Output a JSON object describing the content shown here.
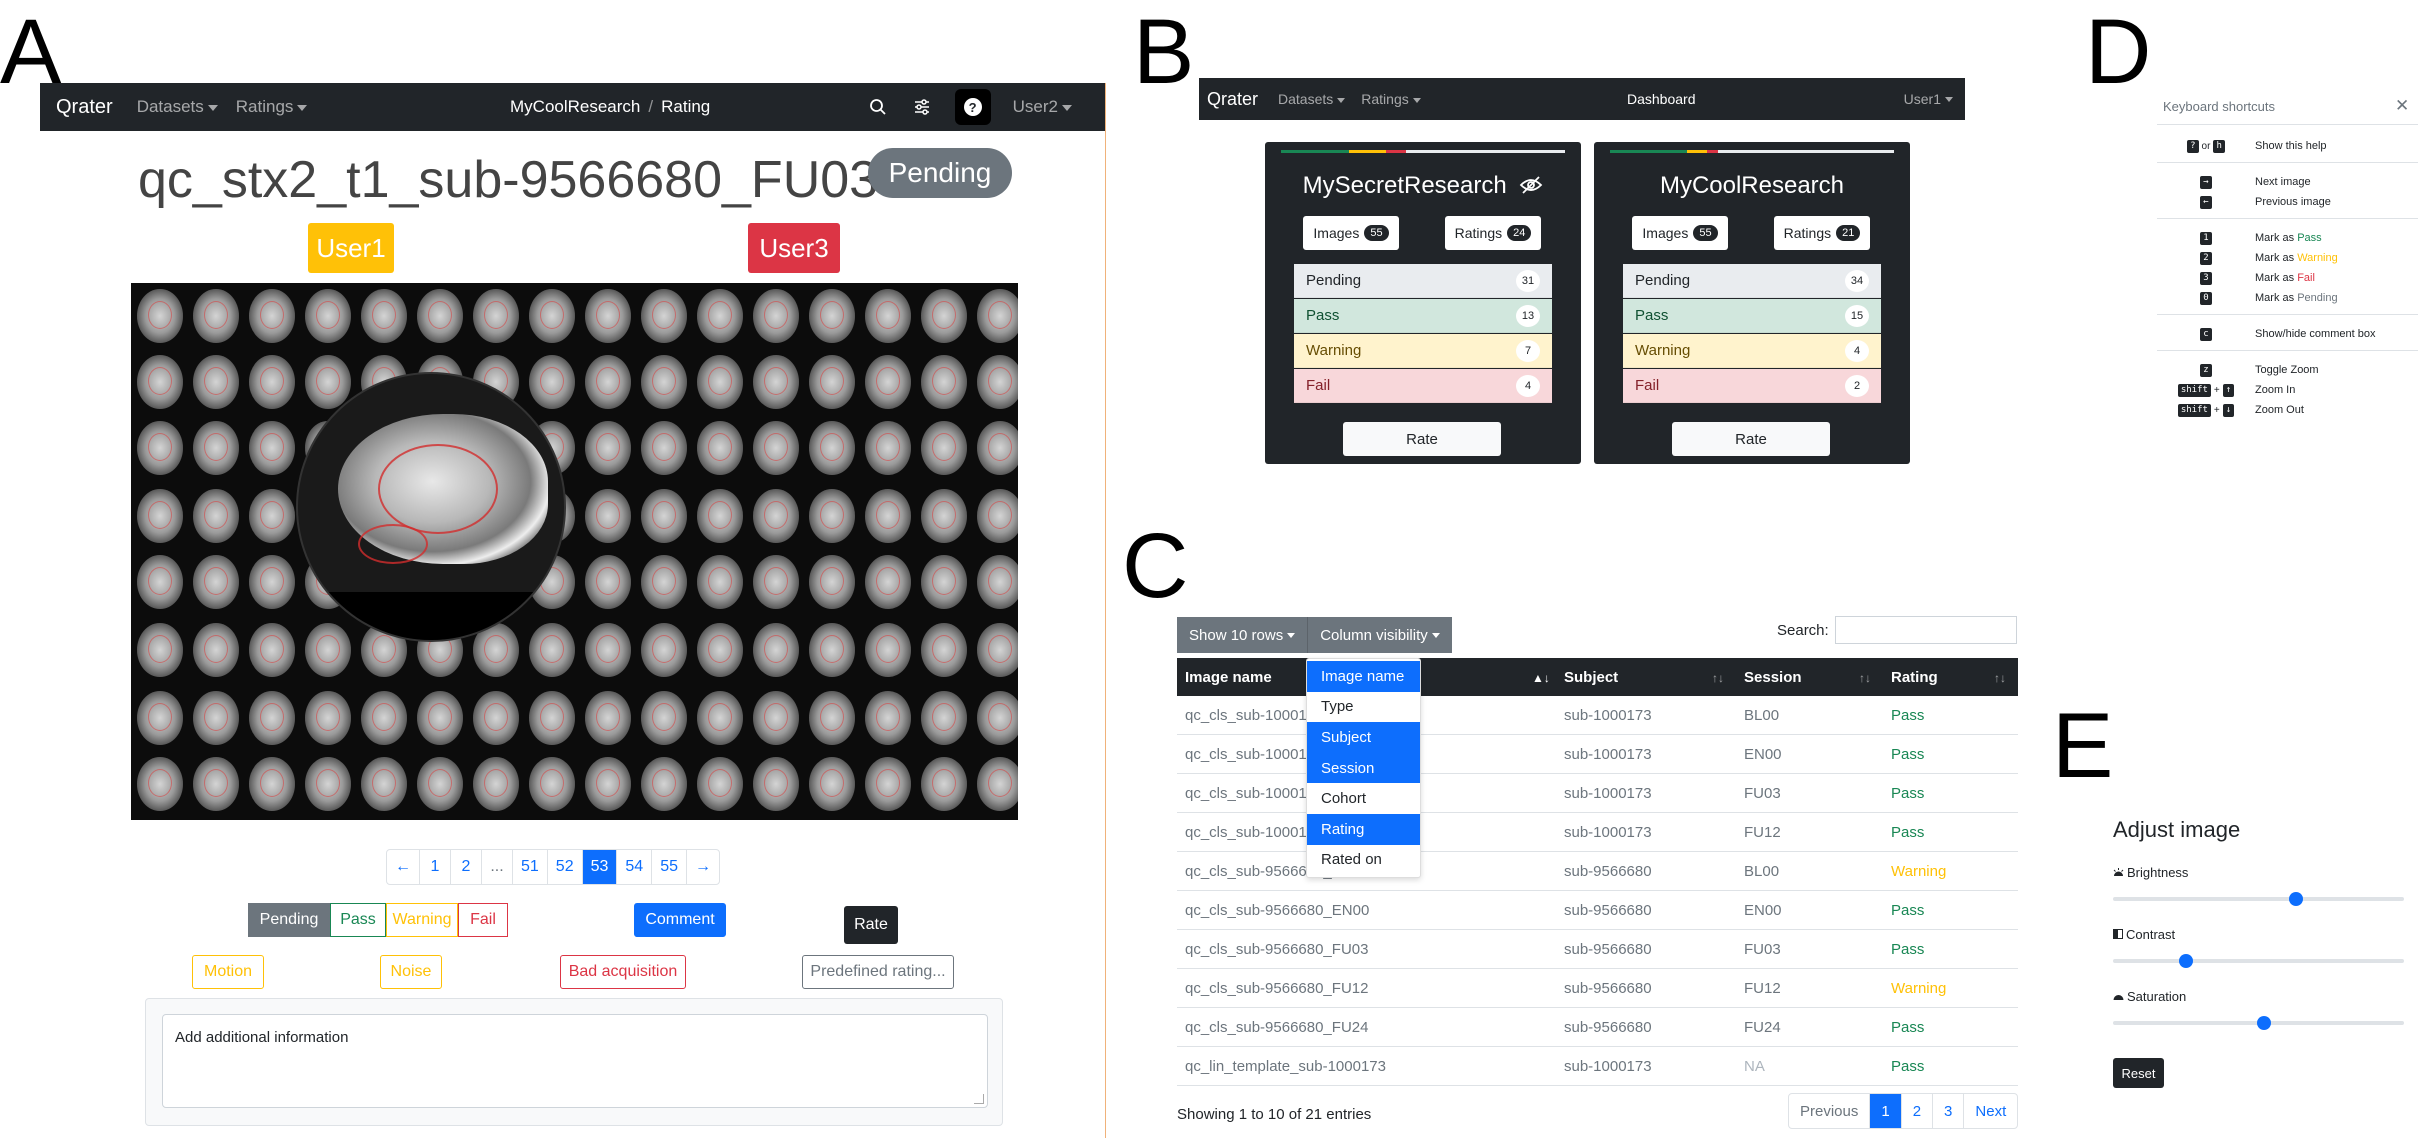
{
  "panel_letters": [
    "A",
    "B",
    "C",
    "D",
    "E"
  ],
  "panelA": {
    "navbar": {
      "brand": "Qrater",
      "menu": [
        "Datasets",
        "Ratings"
      ],
      "breadcrumb": [
        "MyCoolResearch",
        "Rating"
      ],
      "user": "User2",
      "icons": [
        "search-icon",
        "sliders-icon",
        "help-icon"
      ]
    },
    "image_title": "qc_stx2_t1_sub-9566680_FU03",
    "status_badge": "Pending",
    "raters": [
      {
        "name": "User1",
        "color": "#ffc107"
      },
      {
        "name": "User3",
        "color": "#dc3545"
      }
    ],
    "pagination": {
      "prev": "←",
      "pages": [
        "1",
        "2",
        "...",
        "51",
        "52",
        "53",
        "54",
        "55"
      ],
      "active": "53",
      "next": "→"
    },
    "rating_buttons": [
      "Pending",
      "Pass",
      "Warning",
      "Fail"
    ],
    "comment_button": "Comment",
    "rate_button": "Rate",
    "tags": [
      "Motion",
      "Noise",
      "Bad acquisition"
    ],
    "predefined_placeholder": "Predefined rating...",
    "comment_placeholder": "Add additional information"
  },
  "panelB": {
    "navbar": {
      "brand": "Qrater",
      "menu": [
        "Datasets",
        "Ratings"
      ],
      "center": "Dashboard",
      "user": "User1"
    },
    "cards": [
      {
        "name": "MySecretResearch",
        "hidden": true,
        "images_label": "Images",
        "images": "55",
        "ratings_label": "Ratings",
        "ratings": "24",
        "progress": {
          "pass": 0.24,
          "warning": 0.13,
          "fail": 0.07,
          "pending": 0.56
        },
        "stats": [
          {
            "label": "Pending",
            "count": "31"
          },
          {
            "label": "Pass",
            "count": "13"
          },
          {
            "label": "Warning",
            "count": "7"
          },
          {
            "label": "Fail",
            "count": "4"
          }
        ],
        "rate": "Rate"
      },
      {
        "name": "MyCoolResearch",
        "hidden": false,
        "images_label": "Images",
        "images": "55",
        "ratings_label": "Ratings",
        "ratings": "21",
        "progress": {
          "pass": 0.27,
          "warning": 0.07,
          "fail": 0.04,
          "pending": 0.62
        },
        "stats": [
          {
            "label": "Pending",
            "count": "34"
          },
          {
            "label": "Pass",
            "count": "15"
          },
          {
            "label": "Warning",
            "count": "4"
          },
          {
            "label": "Fail",
            "count": "2"
          }
        ],
        "rate": "Rate"
      }
    ]
  },
  "panelC": {
    "show_rows": "Show 10 rows",
    "column_visibility": "Column visibility",
    "search_label": "Search:",
    "columns": [
      "Image name",
      "Subject",
      "Session",
      "Rating"
    ],
    "dropdown": [
      {
        "label": "Image name",
        "on": true
      },
      {
        "label": "Type",
        "on": false
      },
      {
        "label": "Subject",
        "on": true
      },
      {
        "label": "Session",
        "on": true
      },
      {
        "label": "Cohort",
        "on": false
      },
      {
        "label": "Rating",
        "on": true
      },
      {
        "label": "Rated on",
        "on": false
      }
    ],
    "rows": [
      {
        "image": "qc_cls_sub-1000173_BL00",
        "subject": "sub-1000173",
        "session": "BL00",
        "rating": "Pass"
      },
      {
        "image": "qc_cls_sub-1000173_EN00",
        "subject": "sub-1000173",
        "session": "EN00",
        "rating": "Pass"
      },
      {
        "image": "qc_cls_sub-1000173_FU03",
        "subject": "sub-1000173",
        "session": "FU03",
        "rating": "Pass"
      },
      {
        "image": "qc_cls_sub-1000173_FU12",
        "subject": "sub-1000173",
        "session": "FU12",
        "rating": "Pass"
      },
      {
        "image": "qc_cls_sub-9566680_BL00",
        "subject": "sub-9566680",
        "session": "BL00",
        "rating": "Warning"
      },
      {
        "image": "qc_cls_sub-9566680_EN00",
        "subject": "sub-9566680",
        "session": "EN00",
        "rating": "Pass"
      },
      {
        "image": "qc_cls_sub-9566680_FU03",
        "subject": "sub-9566680",
        "session": "FU03",
        "rating": "Pass"
      },
      {
        "image": "qc_cls_sub-9566680_FU12",
        "subject": "sub-9566680",
        "session": "FU12",
        "rating": "Warning"
      },
      {
        "image": "qc_cls_sub-9566680_FU24",
        "subject": "sub-9566680",
        "session": "FU24",
        "rating": "Pass"
      },
      {
        "image": "qc_lin_template_sub-1000173",
        "subject": "sub-1000173",
        "session": "NA",
        "rating": "Pass"
      }
    ],
    "info": "Showing 1 to 10 of 21 entries",
    "pager": {
      "prev": "Previous",
      "pages": [
        "1",
        "2",
        "3"
      ],
      "next": "Next"
    }
  },
  "panelD": {
    "title": "Keyboard shortcuts",
    "shortcuts": [
      {
        "keys": [
          "?",
          "or",
          "h"
        ],
        "desc": "Show this help"
      },
      {
        "keys": [
          "→"
        ],
        "desc": "Next image"
      },
      {
        "keys": [
          "←"
        ],
        "desc": "Previous image"
      },
      {
        "keys": [
          "1"
        ],
        "desc_prefix": "Mark as ",
        "desc_word": "Pass",
        "color": "#198754"
      },
      {
        "keys": [
          "2"
        ],
        "desc_prefix": "Mark as ",
        "desc_word": "Warning",
        "color": "#ffc107"
      },
      {
        "keys": [
          "3"
        ],
        "desc_prefix": "Mark as ",
        "desc_word": "Fail",
        "color": "#dc3545"
      },
      {
        "keys": [
          "0"
        ],
        "desc_prefix": "Mark as ",
        "desc_word": "Pending",
        "color": "#6c757d"
      },
      {
        "keys": [
          "c"
        ],
        "desc": "Show/hide comment box"
      },
      {
        "keys": [
          "z"
        ],
        "desc": "Toggle Zoom"
      },
      {
        "keys": [
          "shift",
          "+",
          "↑"
        ],
        "desc": "Zoom In"
      },
      {
        "keys": [
          "shift",
          "+",
          "↓"
        ],
        "desc": "Zoom Out"
      }
    ]
  },
  "panelE": {
    "title": "Adjust image",
    "sliders": [
      {
        "label": "Brightness",
        "icon": "sun-icon",
        "value": 0.63
      },
      {
        "label": "Contrast",
        "icon": "contrast-icon",
        "value": 0.25
      },
      {
        "label": "Saturation",
        "icon": "droplet-icon",
        "value": 0.52
      }
    ],
    "reset": "Reset"
  },
  "colors": {
    "dark": "#212529",
    "primary": "#0d6efd",
    "secondary": "#6c757d",
    "pass": "#198754",
    "warning": "#ffc107",
    "fail": "#dc3545"
  }
}
